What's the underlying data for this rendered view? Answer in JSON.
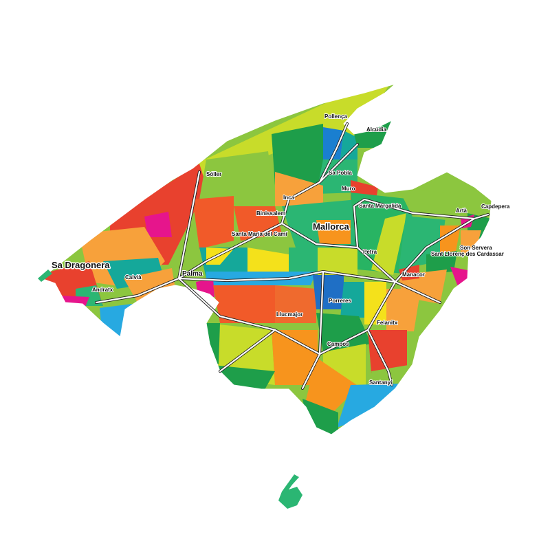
{
  "map": {
    "island_label": "Mallorca",
    "colors": {
      "base": "#8cc63f",
      "yellow_green": "#c8dc2a",
      "dark_green": "#1e9e4a",
      "green": "#2bb673",
      "teal": "#15a89a",
      "blue": "#27a9e1",
      "deep_blue": "#1f6fc5",
      "red": "#e8412e",
      "orange_red": "#f15a29",
      "orange": "#f7a13b",
      "deep_orange": "#f7941d",
      "yellow": "#f4e11b",
      "magenta": "#e6158c"
    },
    "places": [
      {
        "name": "Pollença"
      },
      {
        "name": "Alcúdia"
      },
      {
        "name": "Sóller"
      },
      {
        "name": "Sa Pobla"
      },
      {
        "name": "Muro"
      },
      {
        "name": "Inca"
      },
      {
        "name": "Santa Margalida"
      },
      {
        "name": "Artà"
      },
      {
        "name": "Capdepera"
      },
      {
        "name": "Binissalem"
      },
      {
        "name": "Santa Maria del Camí"
      },
      {
        "name": "Son Servera"
      },
      {
        "name": "Sant Llorenç des Cardassar"
      },
      {
        "name": "Petra"
      },
      {
        "name": "Sa Dragonera"
      },
      {
        "name": "Calvià"
      },
      {
        "name": "Palma"
      },
      {
        "name": "Manacor"
      },
      {
        "name": "Andratx"
      },
      {
        "name": "Porreres"
      },
      {
        "name": "Llucmajor"
      },
      {
        "name": "Felanitx"
      },
      {
        "name": "Campos"
      },
      {
        "name": "Santanyí"
      }
    ]
  }
}
